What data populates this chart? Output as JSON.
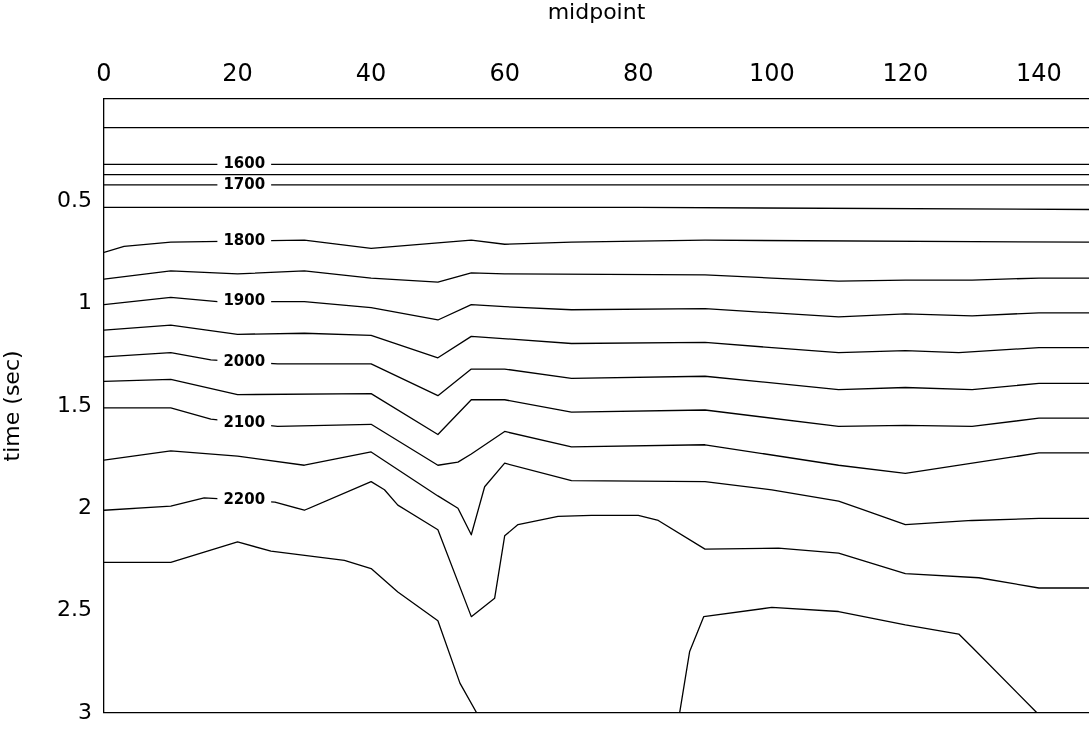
{
  "chart_data": {
    "type": "line",
    "xlabel": "midpoint",
    "ylabel": "time (sec)",
    "xlim": [
      0,
      147.5
    ],
    "xticks": [
      0,
      20,
      40,
      60,
      80,
      100,
      120,
      140
    ],
    "ylim": [
      3,
      0
    ],
    "yticks": [
      0.5,
      1,
      1.5,
      2,
      2.5,
      3
    ],
    "marker": "none",
    "series": [
      {
        "color": "#000000",
        "x": [
          0,
          147.5
        ],
        "values": [
          0.14,
          0.14
        ]
      },
      {
        "name": "1600",
        "color": "#000000",
        "x": [
          0,
          147.5
        ],
        "values": [
          0.32,
          0.32
        ]
      },
      {
        "color": "#000000",
        "x": [
          0,
          147.5
        ],
        "values": [
          0.37,
          0.37
        ]
      },
      {
        "name": "1700",
        "color": "#000000",
        "x": [
          0,
          147.5
        ],
        "values": [
          0.42,
          0.42
        ]
      },
      {
        "color": "#000000",
        "x": [
          0,
          80,
          147.5
        ],
        "values": [
          0.53,
          0.53,
          0.54
        ]
      },
      {
        "name": "1800",
        "color": "#000000",
        "x": [
          0,
          3,
          10,
          30,
          40,
          55,
          60,
          70,
          90,
          147.5
        ],
        "values": [
          0.75,
          0.72,
          0.7,
          0.69,
          0.73,
          0.69,
          0.71,
          0.7,
          0.69,
          0.7
        ]
      },
      {
        "color": "#000000",
        "x": [
          0,
          10,
          20,
          30,
          40,
          50,
          55,
          60,
          90,
          100,
          110,
          120,
          130,
          140,
          147.5
        ],
        "values": [
          0.88,
          0.84,
          0.855,
          0.84,
          0.875,
          0.895,
          0.85,
          0.855,
          0.86,
          0.875,
          0.89,
          0.885,
          0.885,
          0.875,
          0.875
        ]
      },
      {
        "name": "1900",
        "color": "#000000",
        "x": [
          0,
          10,
          17,
          30,
          40,
          50,
          55,
          60,
          70,
          90,
          110,
          120,
          130,
          140,
          147.5
        ],
        "values": [
          1.005,
          0.97,
          0.99,
          0.99,
          1.02,
          1.08,
          1.005,
          1.015,
          1.03,
          1.025,
          1.065,
          1.05,
          1.06,
          1.045,
          1.045
        ]
      },
      {
        "color": "#000000",
        "x": [
          0,
          10,
          20,
          30,
          40,
          50,
          55,
          70,
          90,
          110,
          120,
          128,
          140,
          147.5
        ],
        "values": [
          1.13,
          1.105,
          1.15,
          1.145,
          1.155,
          1.265,
          1.16,
          1.195,
          1.19,
          1.24,
          1.23,
          1.24,
          1.215,
          1.215
        ]
      },
      {
        "name": "2000",
        "color": "#000000",
        "x": [
          0,
          10,
          16,
          26,
          40,
          50,
          55,
          60,
          70,
          90,
          110,
          120,
          130,
          140,
          147.5
        ],
        "values": [
          1.26,
          1.24,
          1.275,
          1.295,
          1.295,
          1.45,
          1.32,
          1.32,
          1.365,
          1.355,
          1.42,
          1.41,
          1.42,
          1.39,
          1.39
        ]
      },
      {
        "color": "#000000",
        "x": [
          0,
          10,
          20,
          40,
          50,
          55,
          60,
          70,
          90,
          110,
          120,
          130,
          140,
          147.5
        ],
        "values": [
          1.38,
          1.37,
          1.445,
          1.44,
          1.64,
          1.47,
          1.47,
          1.53,
          1.52,
          1.6,
          1.595,
          1.6,
          1.56,
          1.56
        ]
      },
      {
        "name": "2100",
        "color": "#000000",
        "x": [
          0,
          10,
          16,
          26,
          40,
          50,
          53,
          55,
          60,
          70,
          90,
          110,
          120,
          140,
          147.5
        ],
        "values": [
          1.51,
          1.51,
          1.565,
          1.6,
          1.59,
          1.79,
          1.775,
          1.735,
          1.625,
          1.7,
          1.69,
          1.79,
          1.83,
          1.73,
          1.73
        ]
      },
      {
        "color": "#000000",
        "x": [
          0,
          10,
          20,
          30,
          40,
          50,
          53,
          55,
          57,
          60,
          70,
          90,
          100,
          110,
          120,
          130,
          140,
          147.5
        ],
        "values": [
          1.765,
          1.72,
          1.745,
          1.79,
          1.725,
          1.94,
          2.0,
          2.13,
          1.895,
          1.78,
          1.865,
          1.87,
          1.91,
          1.965,
          2.08,
          2.06,
          2.05,
          2.05
        ]
      },
      {
        "name": "2200",
        "color": "#000000",
        "x": [
          0,
          10,
          15,
          25.6,
          30,
          40,
          42,
          44,
          50,
          55,
          58.5,
          60,
          62,
          68,
          73,
          80,
          83,
          90,
          101,
          110,
          120,
          131,
          140,
          147.5
        ],
        "values": [
          2.01,
          1.99,
          1.95,
          1.97,
          2.01,
          1.87,
          1.91,
          1.985,
          2.105,
          2.53,
          2.44,
          2.135,
          2.08,
          2.04,
          2.035,
          2.035,
          2.06,
          2.2,
          2.195,
          2.22,
          2.32,
          2.34,
          2.39,
          2.39
        ]
      },
      {
        "color": "#000000",
        "x": [
          0,
          10,
          20,
          25,
          36,
          40,
          44,
          50,
          53.3,
          55.8,
          71,
          86.2,
          87.7,
          89.8,
          100,
          110,
          120,
          128,
          130,
          139.7
        ],
        "values": [
          2.265,
          2.265,
          2.165,
          2.21,
          2.255,
          2.295,
          2.41,
          2.55,
          2.855,
          3.0,
          null,
          3.0,
          2.7,
          2.53,
          2.485,
          2.505,
          2.57,
          2.615,
          2.68,
          3.0
        ]
      }
    ]
  }
}
